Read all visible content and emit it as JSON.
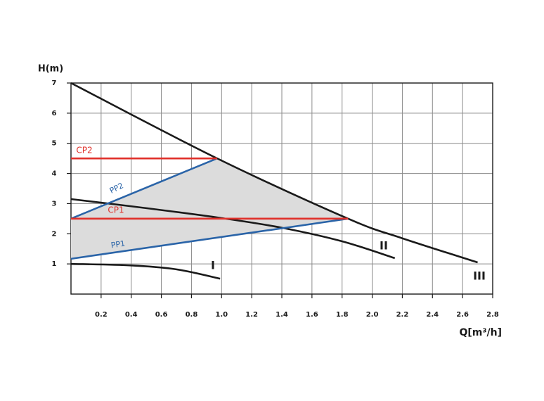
{
  "chart_data": {
    "type": "line",
    "x_label": "Q[m³/h]",
    "y_label": "H(m)",
    "xlim": [
      0,
      2.8
    ],
    "ylim": [
      0,
      7
    ],
    "xticks": [
      0.2,
      0.4,
      0.6,
      0.8,
      {
        "value": 1,
        "label": "1.0"
      },
      1.2,
      1.4,
      1.6,
      1.8,
      {
        "value": 2,
        "label": "2.0"
      },
      2.2,
      2.4,
      2.6,
      2.8
    ],
    "yticks": [
      1,
      2,
      3,
      4,
      5,
      6,
      7
    ],
    "grid": true,
    "shade_color": "#dcdcdc",
    "series": [
      {
        "name": "III",
        "color": "#1a1a1a",
        "smooth": true,
        "x": [
          0,
          0.97,
          1.84,
          2.2,
          2.7
        ],
        "values": [
          7,
          4.5,
          2.5,
          1.85,
          1.05
        ]
      },
      {
        "name": "II",
        "color": "#1a1a1a",
        "smooth": true,
        "x": [
          0,
          0.5,
          1,
          1.4,
          1.8,
          2.15
        ],
        "values": [
          3.15,
          2.85,
          2.52,
          2.2,
          1.75,
          1.19
        ]
      },
      {
        "name": "I",
        "color": "#1a1a1a",
        "smooth": true,
        "x": [
          0,
          0.4,
          0.7,
          0.99
        ],
        "values": [
          1.0,
          0.95,
          0.82,
          0.51
        ]
      },
      {
        "name": "PP2",
        "color": "#2a64a8",
        "x": [
          0,
          0.97
        ],
        "values": [
          2.5,
          4.5
        ]
      },
      {
        "name": "PP1",
        "color": "#2a64a8",
        "x": [
          0,
          1.84
        ],
        "values": [
          1.17,
          2.5
        ]
      },
      {
        "name": "CP2",
        "color": "#e0302a",
        "x": [
          0,
          0.97
        ],
        "values": [
          4.5,
          4.5
        ]
      },
      {
        "name": "CP1",
        "color": "#e0302a",
        "x": [
          0,
          1.84
        ],
        "values": [
          2.5,
          2.5
        ]
      }
    ]
  }
}
